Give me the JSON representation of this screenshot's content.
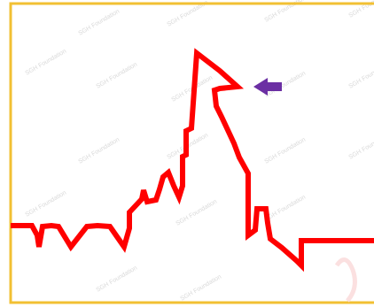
{
  "diagram": {
    "frame_color": "#f2c033",
    "trace_color": "#ff0000",
    "arrow_color": "#6b2fa3",
    "watermark_color": "#d9d9d9",
    "watermark_text": "SGH Foundation",
    "arrow_icon": "left-arrow-icon"
  }
}
